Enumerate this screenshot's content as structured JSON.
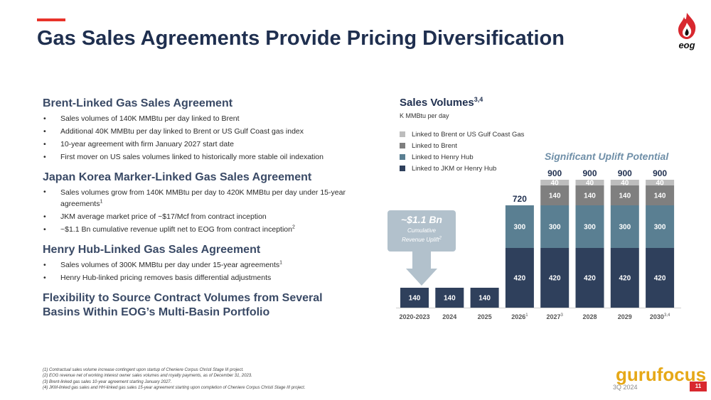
{
  "header": {
    "title": "Gas Sales Agreements Provide Pricing Diversification",
    "logo_text": "eog"
  },
  "sections": [
    {
      "heading": "Brent-Linked Gas Sales Agreement",
      "bullets": [
        {
          "text": "Sales volumes of 140K MMBtu per day linked to Brent",
          "sup": ""
        },
        {
          "text": "Additional 40K MMBtu per day linked to Brent or US Gulf Coast gas index",
          "sup": ""
        },
        {
          "text": "10-year agreement with firm January 2027 start date",
          "sup": ""
        },
        {
          "text": "First mover on US sales volumes linked to historically more stable oil indexation",
          "sup": ""
        }
      ]
    },
    {
      "heading": "Japan Korea Marker-Linked Gas Sales Agreement",
      "bullets": [
        {
          "text": "Sales volumes grow from 140K MMBtu per day to 420K MMBtu per day under 15-year agreements",
          "sup": "1"
        },
        {
          "text": "JKM average market price of ~$17/Mcf from contract inception",
          "sup": ""
        },
        {
          "text": "~$1.1 Bn cumulative revenue uplift net to EOG from contract inception",
          "sup": "2"
        }
      ]
    },
    {
      "heading": "Henry Hub-Linked Gas Sales Agreement",
      "bullets": [
        {
          "text": "Sales volumes of 300K MMBtu per day under 15-year agreements",
          "sup": "1"
        },
        {
          "text": "Henry Hub-linked pricing removes basis differential adjustments",
          "sup": ""
        }
      ]
    }
  ],
  "closing_heading": "Flexibility to Source Contract Volumes from Several Basins Within EOG’s Multi-Basin Portfolio",
  "footnotes": [
    "(1)     Contractual sales volume increase contingent upon startup of Cheniere Corpus Christi Stage III project.",
    "(2)     EOG revenue net of working interest owner sales volumes and royalty payments, as of December 31, 2023.",
    "(3)     Brent-linked gas sales 10-year agreement starting January 2027.",
    "(4)     JKM-linked gas sales and HH-linked gas sales 15-year agreement starting upon completion of Cheniere Corpus Christi Stage III project."
  ],
  "page": {
    "date": "3Q 2024",
    "number": "11"
  },
  "watermark": "gurufocus",
  "callout": {
    "text": "Significant Uplift Potential"
  },
  "bubble": {
    "value": "~$1.1 Bn",
    "label_line1": "Cumulative",
    "label_line2": "Revenue Uplift",
    "label_sup": "2"
  },
  "colors": {
    "brent_or_gulf": "#bdbdbd",
    "brent": "#7f7f7f",
    "henry_hub": "#5a7f92",
    "jkm_or_hh": "#2f405c",
    "accent": "#e8332a",
    "callout": "#6f8fa8"
  },
  "chart_data": {
    "type": "bar",
    "stacked": true,
    "title": "Sales Volumes",
    "title_sup": "3,4",
    "subtitle": "K MMBtu per day",
    "categories": [
      "2020-2023",
      "2024",
      "2025",
      "2026",
      "2027",
      "2028",
      "2029",
      "2030"
    ],
    "category_sups": [
      "",
      "",
      "",
      "1",
      "3",
      "",
      "",
      "3,4"
    ],
    "series": [
      {
        "name": "Linked to JKM or Henry Hub",
        "values": [
          140,
          140,
          140,
          420,
          420,
          420,
          420,
          420
        ]
      },
      {
        "name": "Linked to Henry Hub",
        "values": [
          0,
          0,
          0,
          300,
          300,
          300,
          300,
          300
        ]
      },
      {
        "name": "Linked to Brent",
        "values": [
          0,
          0,
          0,
          0,
          140,
          140,
          140,
          140
        ]
      },
      {
        "name": "Linked to Brent or US Gulf Coast Gas",
        "values": [
          0,
          0,
          0,
          0,
          40,
          40,
          40,
          40
        ]
      }
    ],
    "legend_order": [
      3,
      2,
      1,
      0
    ],
    "totals": [
      null,
      null,
      null,
      720,
      900,
      900,
      900,
      900
    ],
    "ylim": [
      0,
      900
    ],
    "legend_position": "top-left",
    "grid": false
  }
}
